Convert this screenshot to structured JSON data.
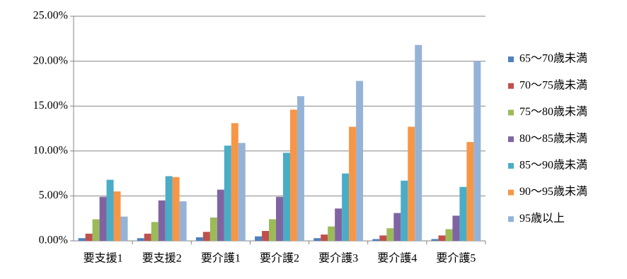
{
  "chart_data": {
    "type": "bar",
    "categories": [
      "要支援1",
      "要支援2",
      "要介護1",
      "要介護2",
      "要介護3",
      "要介護4",
      "要介護5"
    ],
    "series": [
      {
        "name": "65～70歳未満",
        "color": "#4f81bd",
        "values": [
          0.3,
          0.3,
          0.4,
          0.5,
          0.3,
          0.2,
          0.2
        ]
      },
      {
        "name": "70～75歳未満",
        "color": "#c0504d",
        "values": [
          0.8,
          0.8,
          1.0,
          1.1,
          0.7,
          0.6,
          0.6
        ]
      },
      {
        "name": "75～80歳未満",
        "color": "#9bbb59",
        "values": [
          2.4,
          2.1,
          2.6,
          2.4,
          1.6,
          1.4,
          1.3
        ]
      },
      {
        "name": "80～85歳未満",
        "color": "#8064a2",
        "values": [
          4.9,
          4.5,
          5.7,
          4.9,
          3.6,
          3.1,
          2.8
        ]
      },
      {
        "name": "85～90歳未満",
        "color": "#4bacc6",
        "values": [
          6.8,
          7.2,
          10.6,
          9.8,
          7.5,
          6.7,
          6.0
        ]
      },
      {
        "name": "90～95歳未満",
        "color": "#f79646",
        "values": [
          5.5,
          7.1,
          13.1,
          14.6,
          12.7,
          12.7,
          11.0
        ]
      },
      {
        "name": "95歳以上",
        "color": "#95b3d7",
        "values": [
          2.7,
          4.4,
          10.9,
          16.1,
          17.8,
          21.8,
          20.0
        ]
      }
    ],
    "ylim": [
      0,
      25
    ],
    "yticks": [
      {
        "value": 0,
        "label": "0.00%"
      },
      {
        "value": 5,
        "label": "5.00%"
      },
      {
        "value": 10,
        "label": "10.00%"
      },
      {
        "value": 15,
        "label": "15.00%"
      },
      {
        "value": 20,
        "label": "20.00%"
      },
      {
        "value": 25,
        "label": "25.00%"
      }
    ],
    "grid": true,
    "legend": "right"
  }
}
